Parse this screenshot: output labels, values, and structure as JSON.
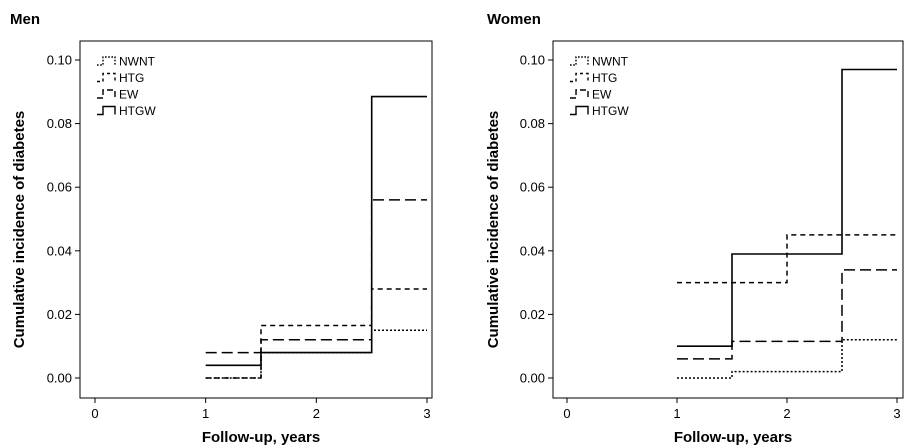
{
  "chart_data": [
    {
      "type": "line",
      "step": true,
      "title": "Men",
      "xlabel": "Follow-up, years",
      "ylabel": "Cumulative incidence of diabetes",
      "xlim": [
        0,
        3
      ],
      "ylim": [
        0,
        0.1
      ],
      "xticks": [
        "0",
        "1",
        "2",
        "3"
      ],
      "yticks": [
        "0.00",
        "0.02",
        "0.04",
        "0.06",
        "0.08",
        "0.10"
      ],
      "grid": false,
      "legend": "top-left",
      "series": [
        {
          "name": "NWNT",
          "style": "dotted",
          "points": [
            [
              1.0,
              0.0
            ],
            [
              1.5,
              0.0
            ],
            [
              1.5,
              0.008
            ],
            [
              2.5,
              0.008
            ],
            [
              2.5,
              0.015
            ],
            [
              3.0,
              0.015
            ]
          ]
        },
        {
          "name": "HTG",
          "style": "short-dash",
          "points": [
            [
              1.0,
              0.0
            ],
            [
              1.5,
              0.0
            ],
            [
              1.5,
              0.0165
            ],
            [
              2.5,
              0.0165
            ],
            [
              2.5,
              0.028
            ],
            [
              3.0,
              0.028
            ]
          ]
        },
        {
          "name": "EW",
          "style": "long-dash",
          "points": [
            [
              1.0,
              0.008
            ],
            [
              1.5,
              0.008
            ],
            [
              1.5,
              0.012
            ],
            [
              2.5,
              0.012
            ],
            [
              2.5,
              0.056
            ],
            [
              3.0,
              0.056
            ]
          ]
        },
        {
          "name": "HTGW",
          "style": "solid",
          "points": [
            [
              1.0,
              0.004
            ],
            [
              1.5,
              0.004
            ],
            [
              1.5,
              0.008
            ],
            [
              2.5,
              0.008
            ],
            [
              2.5,
              0.0885
            ],
            [
              3.0,
              0.0885
            ]
          ]
        }
      ]
    },
    {
      "type": "line",
      "step": true,
      "title": "Women",
      "xlabel": "Follow-up, years",
      "ylabel": "Cumulative incidence of diabetes",
      "xlim": [
        0,
        3
      ],
      "ylim": [
        0,
        0.1
      ],
      "xticks": [
        "0",
        "1",
        "2",
        "3"
      ],
      "yticks": [
        "0.00",
        "0.02",
        "0.04",
        "0.06",
        "0.08",
        "0.10"
      ],
      "grid": false,
      "legend": "top-left",
      "series": [
        {
          "name": "NWNT",
          "style": "dotted",
          "points": [
            [
              1.0,
              0.0
            ],
            [
              1.5,
              0.0
            ],
            [
              1.5,
              0.002
            ],
            [
              2.5,
              0.002
            ],
            [
              2.5,
              0.012
            ],
            [
              3.0,
              0.012
            ]
          ]
        },
        {
          "name": "HTG",
          "style": "short-dash",
          "points": [
            [
              1.0,
              0.03
            ],
            [
              2.0,
              0.03
            ],
            [
              2.0,
              0.045
            ],
            [
              3.0,
              0.045
            ]
          ]
        },
        {
          "name": "EW",
          "style": "long-dash",
          "points": [
            [
              1.0,
              0.006
            ],
            [
              1.5,
              0.006
            ],
            [
              1.5,
              0.0115
            ],
            [
              2.5,
              0.0115
            ],
            [
              2.5,
              0.034
            ],
            [
              3.0,
              0.034
            ]
          ]
        },
        {
          "name": "HTGW",
          "style": "solid",
          "points": [
            [
              1.0,
              0.01
            ],
            [
              1.5,
              0.01
            ],
            [
              1.5,
              0.039
            ],
            [
              2.5,
              0.039
            ],
            [
              2.5,
              0.097
            ],
            [
              3.0,
              0.097
            ]
          ]
        }
      ]
    }
  ]
}
